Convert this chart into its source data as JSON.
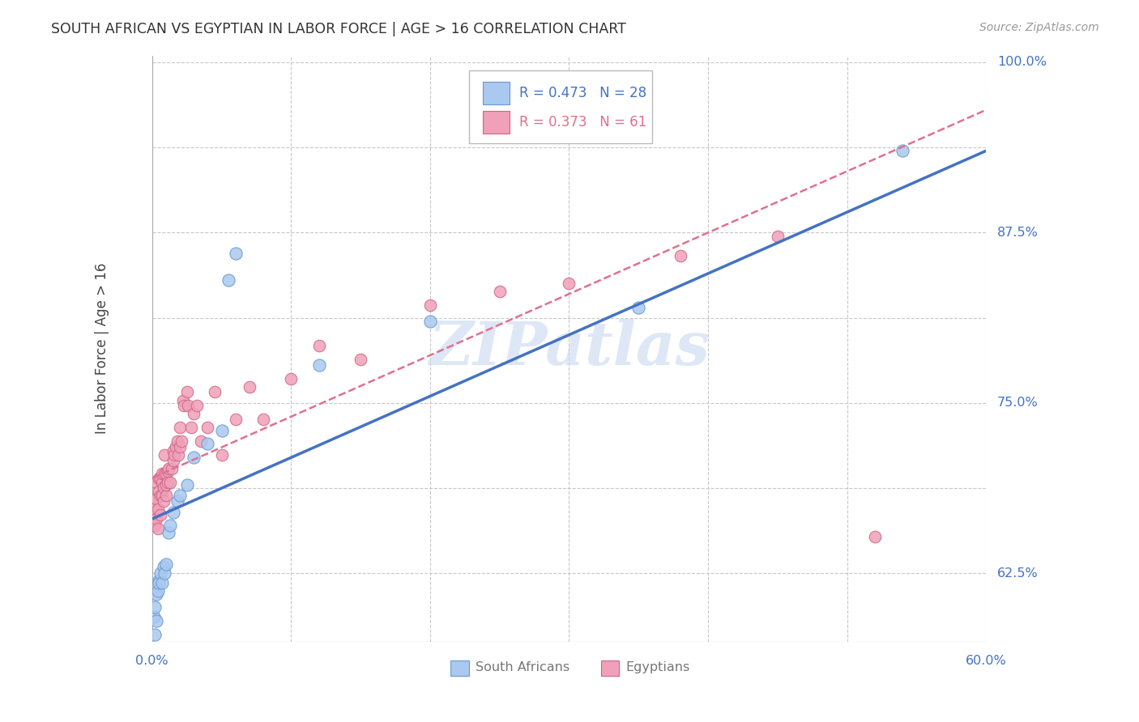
{
  "title": "SOUTH AFRICAN VS EGYPTIAN IN LABOR FORCE | AGE > 16 CORRELATION CHART",
  "source": "Source: ZipAtlas.com",
  "ylabel": "In Labor Force | Age > 16",
  "x_min": 0.0,
  "x_max": 0.6,
  "y_min": 0.575,
  "y_max": 1.005,
  "x_ticks": [
    0.0,
    0.1,
    0.2,
    0.3,
    0.4,
    0.5,
    0.6
  ],
  "y_ticks": [
    0.625,
    0.6875,
    0.75,
    0.8125,
    0.875,
    0.9375,
    1.0
  ],
  "background_color": "#ffffff",
  "grid_color": "#c8c8c8",
  "title_color": "#333333",
  "watermark_text": "ZIPatlas",
  "watermark_color": "#c8d8f0",
  "south_african_color": "#aac8f0",
  "south_african_edge": "#6699cc",
  "egyptian_color": "#f0a0b8",
  "egyptian_edge": "#cc6688",
  "R_south_african": 0.473,
  "N_south_african": 28,
  "R_egyptian": 0.373,
  "N_egyptian": 61,
  "sa_line_color": "#4472c4",
  "eg_line_color": "#e07090",
  "tick_label_color": "#4472c4",
  "legend_text_color_sa": "#4472c4",
  "legend_text_color_eg": "#e07090",
  "south_african_x": [
    0.001,
    0.002,
    0.002,
    0.003,
    0.003,
    0.004,
    0.005,
    0.005,
    0.006,
    0.007,
    0.008,
    0.009,
    0.01,
    0.012,
    0.013,
    0.015,
    0.018,
    0.02,
    0.025,
    0.03,
    0.04,
    0.05,
    0.055,
    0.06,
    0.12,
    0.2,
    0.35,
    0.54
  ],
  "south_african_y": [
    0.593,
    0.58,
    0.6,
    0.59,
    0.61,
    0.612,
    0.62,
    0.618,
    0.625,
    0.618,
    0.63,
    0.625,
    0.632,
    0.655,
    0.66,
    0.67,
    0.678,
    0.682,
    0.69,
    0.71,
    0.72,
    0.73,
    0.84,
    0.86,
    0.778,
    0.81,
    0.82,
    0.935
  ],
  "egyptian_x": [
    0.001,
    0.001,
    0.002,
    0.002,
    0.003,
    0.003,
    0.003,
    0.004,
    0.004,
    0.005,
    0.005,
    0.006,
    0.006,
    0.006,
    0.007,
    0.007,
    0.007,
    0.008,
    0.008,
    0.009,
    0.009,
    0.01,
    0.01,
    0.01,
    0.011,
    0.011,
    0.012,
    0.013,
    0.014,
    0.015,
    0.015,
    0.016,
    0.017,
    0.018,
    0.019,
    0.02,
    0.02,
    0.021,
    0.022,
    0.023,
    0.025,
    0.026,
    0.028,
    0.03,
    0.032,
    0.035,
    0.04,
    0.045,
    0.05,
    0.06,
    0.07,
    0.08,
    0.1,
    0.12,
    0.15,
    0.2,
    0.25,
    0.3,
    0.38,
    0.45,
    0.52
  ],
  "egyptian_y": [
    0.668,
    0.678,
    0.672,
    0.66,
    0.665,
    0.68,
    0.692,
    0.672,
    0.658,
    0.685,
    0.695,
    0.668,
    0.682,
    0.695,
    0.682,
    0.692,
    0.698,
    0.688,
    0.678,
    0.698,
    0.712,
    0.698,
    0.682,
    0.69,
    0.692,
    0.7,
    0.702,
    0.692,
    0.702,
    0.708,
    0.715,
    0.712,
    0.718,
    0.722,
    0.712,
    0.718,
    0.732,
    0.722,
    0.752,
    0.748,
    0.758,
    0.748,
    0.732,
    0.742,
    0.748,
    0.722,
    0.732,
    0.758,
    0.712,
    0.738,
    0.762,
    0.738,
    0.768,
    0.792,
    0.782,
    0.822,
    0.832,
    0.838,
    0.858,
    0.872,
    0.652
  ]
}
